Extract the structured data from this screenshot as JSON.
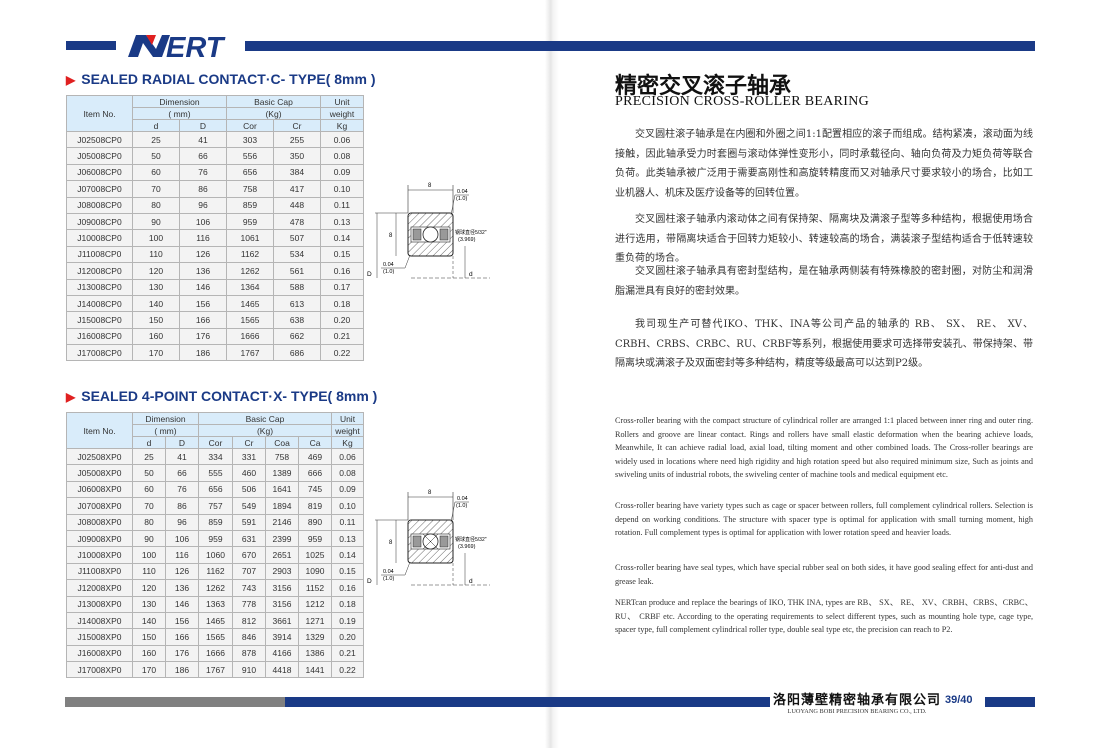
{
  "brand": {
    "logo_text": "NERT",
    "primary_color": "#1a3a86",
    "accent_color": "#e02020",
    "gray_color": "#808080"
  },
  "left_page": {
    "sections": [
      {
        "title": "SEALED RADIAL CONTACT·C- TYPE( 8mm )",
        "header": {
          "item": "Item No.",
          "dimension": "Dimension",
          "dimension_unit": "( mm)",
          "basic_cap": "Basic Cap",
          "basic_cap_unit": "(Kg)",
          "unit": "Unit",
          "weight": "weight",
          "kg": "Kg"
        },
        "columns": [
          "d",
          "D",
          "Cor",
          "Cr"
        ],
        "rows": [
          [
            "J02508CP0",
            "25",
            "41",
            "303",
            "255",
            "0.06"
          ],
          [
            "J05008CP0",
            "50",
            "66",
            "556",
            "350",
            "0.08"
          ],
          [
            "J06008CP0",
            "60",
            "76",
            "656",
            "384",
            "0.09"
          ],
          [
            "J07008CP0",
            "70",
            "86",
            "758",
            "417",
            "0.10"
          ],
          [
            "J08008CP0",
            "80",
            "96",
            "859",
            "448",
            "0.11"
          ],
          [
            "J09008CP0",
            "90",
            "106",
            "959",
            "478",
            "0.13"
          ],
          [
            "J10008CP0",
            "100",
            "116",
            "1061",
            "507",
            "0.14"
          ],
          [
            "J11008CP0",
            "110",
            "126",
            "1162",
            "534",
            "0.15"
          ],
          [
            "J12008CP0",
            "120",
            "136",
            "1262",
            "561",
            "0.16"
          ],
          [
            "J13008CP0",
            "130",
            "146",
            "1364",
            "588",
            "0.17"
          ],
          [
            "J14008CP0",
            "140",
            "156",
            "1465",
            "613",
            "0.18"
          ],
          [
            "J15008CP0",
            "150",
            "166",
            "1565",
            "638",
            "0.20"
          ],
          [
            "J16008CP0",
            "160",
            "176",
            "1666",
            "662",
            "0.21"
          ],
          [
            "J17008CP0",
            "170",
            "186",
            "1767",
            "686",
            "0.22"
          ]
        ]
      },
      {
        "title": "SEALED 4-POINT CONTACT·X- TYPE( 8mm )",
        "header": {
          "item": "Item No.",
          "dimension": "Dimension",
          "dimension_unit": "( mm)",
          "basic_cap": "Basic Cap",
          "basic_cap_unit": "(Kg)",
          "unit": "Unit",
          "weight": "weight",
          "kg": "Kg"
        },
        "columns": [
          "d",
          "D",
          "Cor",
          "Cr",
          "Coa",
          "Ca"
        ],
        "rows": [
          [
            "J02508XP0",
            "25",
            "41",
            "334",
            "331",
            "758",
            "469",
            "0.06"
          ],
          [
            "J05008XP0",
            "50",
            "66",
            "555",
            "460",
            "1389",
            "666",
            "0.08"
          ],
          [
            "J06008XP0",
            "60",
            "76",
            "656",
            "506",
            "1641",
            "745",
            "0.09"
          ],
          [
            "J07008XP0",
            "70",
            "86",
            "757",
            "549",
            "1894",
            "819",
            "0.10"
          ],
          [
            "J08008XP0",
            "80",
            "96",
            "859",
            "591",
            "2146",
            "890",
            "0.11"
          ],
          [
            "J09008XP0",
            "90",
            "106",
            "959",
            "631",
            "2399",
            "959",
            "0.13"
          ],
          [
            "J10008XP0",
            "100",
            "116",
            "1060",
            "670",
            "2651",
            "1025",
            "0.14"
          ],
          [
            "J11008XP0",
            "110",
            "126",
            "1162",
            "707",
            "2903",
            "1090",
            "0.15"
          ],
          [
            "J12008XP0",
            "120",
            "136",
            "1262",
            "743",
            "3156",
            "1152",
            "0.16"
          ],
          [
            "J13008XP0",
            "130",
            "146",
            "1363",
            "778",
            "3156",
            "1212",
            "0.18"
          ],
          [
            "J14008XP0",
            "140",
            "156",
            "1465",
            "812",
            "3661",
            "1271",
            "0.19"
          ],
          [
            "J15008XP0",
            "150",
            "166",
            "1565",
            "846",
            "3914",
            "1329",
            "0.20"
          ],
          [
            "J16008XP0",
            "160",
            "176",
            "1666",
            "878",
            "4166",
            "1386",
            "0.21"
          ],
          [
            "J17008XP0",
            "170",
            "186",
            "1767",
            "910",
            "4418",
            "1441",
            "0.22"
          ]
        ]
      }
    ],
    "diagram_labels": {
      "width": "8",
      "chamfer": "0.04",
      "chamfer_mm": "(1.0)",
      "height": "8",
      "ball": "钢球直径5/32\"",
      "ball_mm": "(3.969)",
      "outer": "D",
      "inner": "d"
    }
  },
  "right_page": {
    "title_cn": "精密交叉滚子轴承",
    "title_en": "PRECISION CROSS-ROLLER BEARING",
    "paragraphs_cn": [
      "交叉圆柱滚子轴承是在内圈和外圈之间1:1配置相应的滚子而组成。结构紧凑，滚动面为线接触，因此轴承受力时套圈与滚动体弹性变形小，同时承载径向、轴向负荷及力矩负荷等联合负荷。此类轴承被广泛用于需要高刚性和高旋转精度而又对轴承尺寸要求较小的场合，比如工业机器人、机床及医疗设备等的回转位置。",
      "交叉圆柱滚子轴承内滚动体之间有保持架、隔离块及满滚子型等多种结构，根据使用场合进行选用，带隔离块适合于回转力矩较小、转速较高的场合，满装滚子型结构适合于低转速较重负荷的场合。",
      "交叉圆柱滚子轴承具有密封型结构，是在轴承两侧装有特殊橡胶的密封圈，对防尘和润滑脂漏泄具有良好的密封效果。",
      "我司现生产可替代IKO、THK、INA等公司产品的轴承的 RB、 SX、 RE、 XV、CRBH、CRBS、CRBC、RU、CRBF等系列，根据使用要求可选择带安装孔、带保持架、带隔离块或满滚子及双面密封等多种结构，精度等级最高可以达到P2级。"
    ],
    "paragraphs_en": [
      "Cross-roller bearing with the compact structure of cylindrical roller are arranged 1:1 placed between inner ring and outer ring. Rollers and groove are linear contact. Rings and rollers have small elastic deformation when the bearing achieve loads, Meanwhile, It can achieve radial load, axial load, tilting moment and other combined loads. The Cross-roller bearings are widely used in locations where need high rigidity and high rotation speed but also required minimum size, Such as joints and swiveling units of industrial robots, the swiveling center of machine tools and medical equipment etc.",
      "Cross-roller bearing have variety types such as cage or spacer between rollers, full complement cylindrical rollers. Selection is depend on working conditions. The structure with spacer type is optimal for application with small turning moment, high rotation. Full complement types is optimal for application with lower rotation speed and heavier loads.",
      "Cross-roller bearing have seal types, which have special rubber seal on both sides, it have good sealing effect for anti-dust and grease leak.",
      "NERTcan produce and replace the bearings of IKO, THK INA, types are RB、 SX、 RE、 XV、CRBH、CRBS、CRBC、 RU、 CRBF etc. According to the operating requirements to select different types, such as mounting hole type, cage type, spacer type, full complement cylindrical roller type, double seal type etc, the precision can reach to P2."
    ]
  },
  "footer": {
    "company_cn": "洛阳薄壁精密轴承有限公司",
    "company_en": "LUOYANG BOBI PRECISION BEARING CO., LTD.",
    "page_number": "39/40"
  }
}
